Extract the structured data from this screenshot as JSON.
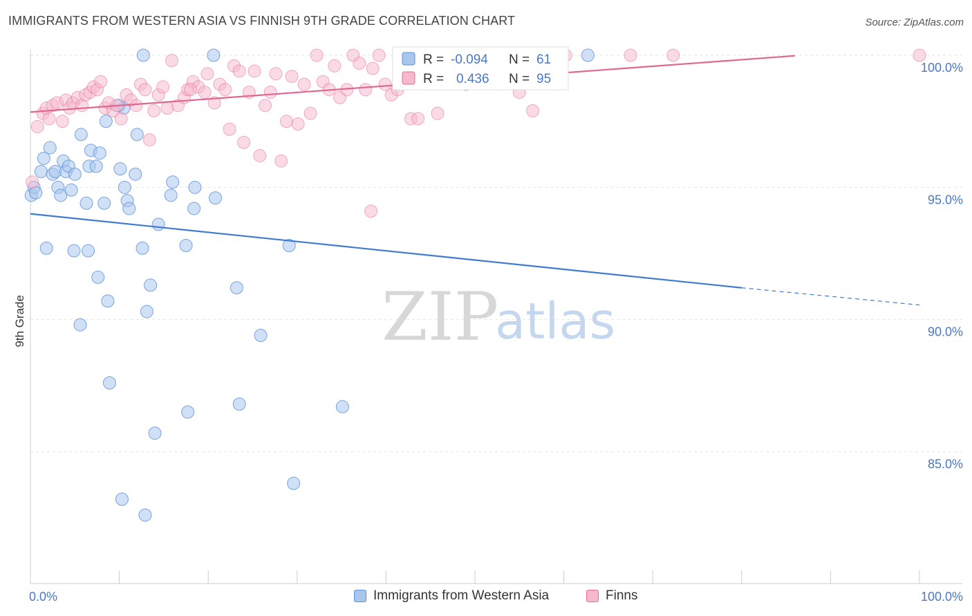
{
  "title": "IMMIGRANTS FROM WESTERN ASIA VS FINNISH 9TH GRADE CORRELATION CHART",
  "source": "Source: ZipAtlas.com",
  "watermark": {
    "zip": "ZIP",
    "atlas": "atlas"
  },
  "colors": {
    "blue": "#5b8fd6",
    "blue_fill": "#a9c6ee",
    "pink": "#e36f98",
    "pink_fill": "#f6b8cc",
    "axis_text": "#4a78c2",
    "grid": "#e6e6e6"
  },
  "legend": {
    "r_label": "R =",
    "n_label": "N =",
    "rows": [
      {
        "r": "-0.094",
        "n": "61",
        "series": "blue"
      },
      {
        "r": "0.436",
        "n": "95",
        "series": "pink"
      }
    ]
  },
  "bottom_legend": [
    {
      "label": "Immigrants from Western Asia",
      "series": "blue"
    },
    {
      "label": "Finns",
      "series": "pink"
    }
  ],
  "chart_data": {
    "type": "scatter",
    "title": "IMMIGRANTS FROM WESTERN ASIA VS FINNISH 9TH GRADE CORRELATION CHART",
    "xlabel": "",
    "ylabel": "9th Grade",
    "xlim": [
      0,
      100
    ],
    "ylim": [
      80.5,
      100.8
    ],
    "x_tick_labels": [
      "0.0%",
      "100.0%"
    ],
    "y_ticks": [
      100,
      95,
      90,
      85
    ],
    "y_tick_labels": [
      "100.0%",
      "95.0%",
      "90.0%",
      "85.0%"
    ],
    "grid": true,
    "series": [
      {
        "name": "Immigrants from Western Asia",
        "color": "#5b8fd6",
        "trend": {
          "x0": 0,
          "y0": 94.0,
          "x1": 80,
          "y1": 91.2,
          "dashed_to_x": 100,
          "dashed_to_y": 90.55
        },
        "points": [
          [
            0.1,
            94.7
          ],
          [
            0.4,
            95.0
          ],
          [
            0.6,
            94.8
          ],
          [
            1.2,
            95.6
          ],
          [
            1.5,
            96.1
          ],
          [
            1.8,
            92.7
          ],
          [
            2.2,
            96.5
          ],
          [
            2.5,
            95.5
          ],
          [
            2.8,
            95.6
          ],
          [
            3.1,
            95.0
          ],
          [
            3.4,
            94.7
          ],
          [
            3.7,
            96.0
          ],
          [
            4.0,
            95.6
          ],
          [
            4.3,
            95.8
          ],
          [
            4.6,
            94.9
          ],
          [
            4.9,
            92.6
          ],
          [
            5.0,
            95.5
          ],
          [
            5.6,
            89.8
          ],
          [
            5.7,
            97.0
          ],
          [
            6.3,
            94.4
          ],
          [
            6.5,
            92.6
          ],
          [
            6.6,
            95.8
          ],
          [
            6.8,
            96.4
          ],
          [
            7.4,
            95.8
          ],
          [
            7.8,
            96.3
          ],
          [
            7.6,
            91.6
          ],
          [
            8.3,
            94.4
          ],
          [
            8.5,
            97.5
          ],
          [
            8.9,
            87.6
          ],
          [
            8.7,
            90.7
          ],
          [
            10.1,
            95.7
          ],
          [
            10.3,
            83.2
          ],
          [
            10.6,
            95.0
          ],
          [
            10.9,
            94.5
          ],
          [
            11.1,
            94.2
          ],
          [
            11.8,
            95.5
          ],
          [
            12.0,
            97.0
          ],
          [
            12.6,
            92.7
          ],
          [
            13.1,
            90.3
          ],
          [
            13.5,
            91.3
          ],
          [
            14.4,
            93.6
          ],
          [
            15.8,
            94.7
          ],
          [
            16.0,
            95.2
          ],
          [
            17.5,
            92.8
          ],
          [
            17.7,
            86.5
          ],
          [
            18.4,
            94.2
          ],
          [
            18.5,
            95.0
          ],
          [
            20.8,
            94.6
          ],
          [
            23.2,
            91.2
          ],
          [
            23.5,
            86.8
          ],
          [
            25.9,
            89.4
          ],
          [
            29.1,
            92.8
          ],
          [
            29.6,
            83.8
          ],
          [
            35.1,
            86.7
          ],
          [
            12.9,
            82.6
          ],
          [
            14.0,
            85.7
          ],
          [
            12.7,
            100.0
          ],
          [
            20.6,
            100.0
          ],
          [
            62.7,
            100.0
          ],
          [
            10.5,
            98.0
          ],
          [
            9.9,
            98.1
          ]
        ]
      },
      {
        "name": "Finns",
        "color": "#e36f98",
        "trend": {
          "x0": 0,
          "y0": 97.85,
          "x1": 86,
          "y1": 99.98
        },
        "points": [
          [
            0.2,
            95.2
          ],
          [
            0.8,
            97.3
          ],
          [
            1.4,
            97.8
          ],
          [
            1.8,
            98.0
          ],
          [
            2.1,
            97.6
          ],
          [
            2.5,
            98.1
          ],
          [
            3.0,
            98.2
          ],
          [
            3.6,
            97.5
          ],
          [
            4.0,
            98.3
          ],
          [
            4.4,
            98.0
          ],
          [
            4.8,
            98.2
          ],
          [
            5.3,
            98.4
          ],
          [
            5.8,
            98.1
          ],
          [
            6.2,
            98.5
          ],
          [
            6.7,
            98.6
          ],
          [
            7.1,
            98.8
          ],
          [
            7.5,
            98.7
          ],
          [
            7.9,
            99.0
          ],
          [
            8.4,
            98.0
          ],
          [
            8.8,
            98.2
          ],
          [
            9.3,
            97.9
          ],
          [
            9.7,
            98.1
          ],
          [
            10.2,
            97.6
          ],
          [
            10.8,
            98.5
          ],
          [
            11.3,
            98.3
          ],
          [
            11.9,
            98.1
          ],
          [
            12.4,
            98.9
          ],
          [
            12.9,
            98.7
          ],
          [
            13.4,
            96.8
          ],
          [
            13.9,
            97.9
          ],
          [
            14.4,
            98.5
          ],
          [
            14.9,
            98.8
          ],
          [
            15.4,
            98.0
          ],
          [
            15.9,
            99.8
          ],
          [
            16.6,
            98.1
          ],
          [
            17.3,
            98.4
          ],
          [
            17.7,
            98.7
          ],
          [
            18.3,
            99.0
          ],
          [
            18.9,
            98.8
          ],
          [
            19.6,
            98.6
          ],
          [
            19.9,
            99.3
          ],
          [
            20.7,
            98.2
          ],
          [
            21.3,
            98.9
          ],
          [
            21.9,
            98.7
          ],
          [
            22.4,
            97.2
          ],
          [
            22.9,
            99.6
          ],
          [
            23.5,
            99.4
          ],
          [
            24.0,
            96.7
          ],
          [
            24.6,
            98.6
          ],
          [
            25.2,
            99.4
          ],
          [
            25.8,
            96.2
          ],
          [
            26.4,
            98.1
          ],
          [
            27.0,
            98.6
          ],
          [
            27.6,
            99.3
          ],
          [
            28.2,
            96.0
          ],
          [
            28.8,
            97.5
          ],
          [
            29.4,
            99.2
          ],
          [
            30.1,
            97.4
          ],
          [
            30.8,
            98.9
          ],
          [
            31.5,
            97.8
          ],
          [
            32.2,
            100.0
          ],
          [
            32.9,
            99.0
          ],
          [
            33.6,
            98.7
          ],
          [
            34.2,
            99.6
          ],
          [
            34.8,
            98.4
          ],
          [
            35.6,
            98.7
          ],
          [
            36.3,
            100.0
          ],
          [
            37.0,
            99.7
          ],
          [
            37.7,
            98.7
          ],
          [
            38.5,
            99.5
          ],
          [
            39.2,
            100.0
          ],
          [
            39.9,
            98.9
          ],
          [
            40.6,
            98.5
          ],
          [
            41.3,
            98.7
          ],
          [
            42.0,
            100.0
          ],
          [
            42.8,
            97.6
          ],
          [
            43.6,
            97.6
          ],
          [
            44.3,
            99.3
          ],
          [
            45.1,
            100.0
          ],
          [
            45.8,
            97.8
          ],
          [
            46.6,
            99.0
          ],
          [
            47.7,
            100.0
          ],
          [
            49.0,
            98.9
          ],
          [
            50.6,
            100.0
          ],
          [
            52.2,
            100.0
          ],
          [
            53.9,
            99.5
          ],
          [
            55.0,
            98.6
          ],
          [
            56.5,
            97.9
          ],
          [
            58.1,
            100.0
          ],
          [
            60.2,
            100.0
          ],
          [
            67.5,
            100.0
          ],
          [
            72.3,
            100.0
          ],
          [
            100.0,
            100.0
          ],
          [
            38.3,
            94.1
          ],
          [
            18.0,
            98.7
          ]
        ]
      }
    ]
  }
}
